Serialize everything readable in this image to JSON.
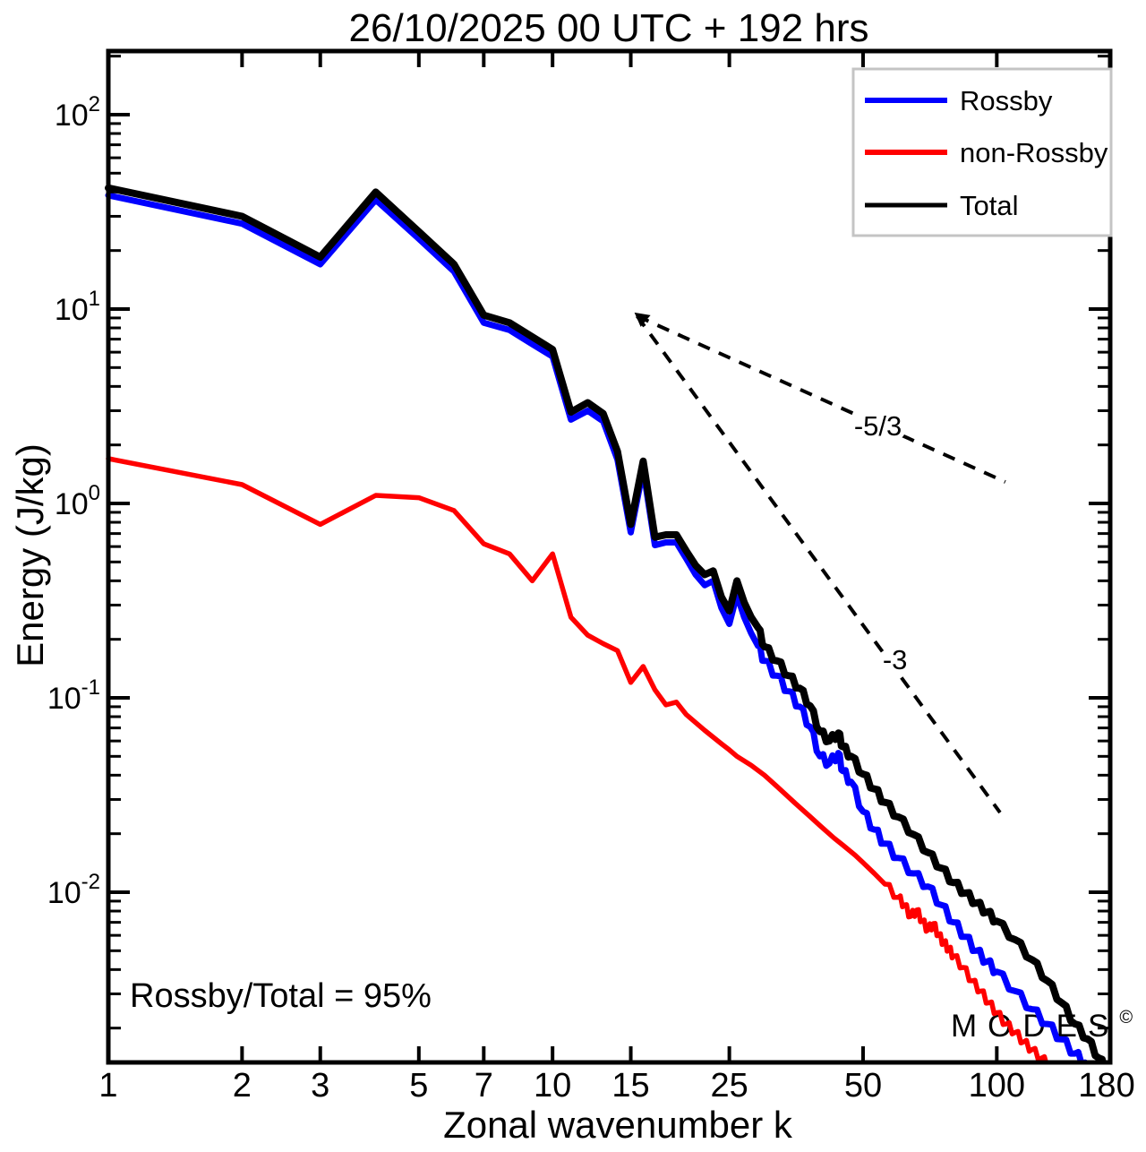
{
  "chart_data": {
    "type": "line",
    "title": "26/10/2025  00 UTC  + 192 hrs",
    "xlabel": "Zonal wavenumber k",
    "ylabel": "Energy (J/kg)",
    "x_scale": "log",
    "y_scale": "log",
    "xlim": [
      1,
      180
    ],
    "ylim": [
      0.00133,
      212
    ],
    "x_ticks": [
      1,
      2,
      3,
      5,
      7,
      10,
      15,
      25,
      50,
      100,
      180
    ],
    "y_tick_exponents": [
      2,
      1,
      0,
      -1,
      -2
    ],
    "grid": false,
    "legend_position": "top-right",
    "series": [
      {
        "name": "Rossby",
        "color": "#0000ff",
        "points": [
          [
            1,
            38.5
          ],
          [
            2,
            27.5
          ],
          [
            3,
            17
          ],
          [
            4,
            36.5
          ],
          [
            5,
            23
          ],
          [
            6,
            15.6
          ],
          [
            7,
            8.5
          ],
          [
            8,
            7.8
          ],
          [
            9,
            6.6
          ],
          [
            10,
            5.7
          ],
          [
            11,
            2.7
          ],
          [
            12,
            3
          ],
          [
            13,
            2.65
          ],
          [
            14,
            1.68
          ],
          [
            15,
            0.71
          ],
          [
            16,
            1.5
          ],
          [
            17,
            0.61
          ],
          [
            18,
            0.63
          ],
          [
            19,
            0.63
          ],
          [
            20,
            0.52
          ],
          [
            21,
            0.43
          ],
          [
            22,
            0.38
          ],
          [
            23,
            0.4
          ],
          [
            24,
            0.29
          ],
          [
            25,
            0.24
          ],
          [
            26,
            0.34
          ],
          [
            27,
            0.26
          ],
          [
            28,
            0.215
          ],
          [
            29,
            0.185
          ],
          [
            30,
            0.155
          ],
          [
            32,
            0.13
          ],
          [
            34,
            0.108
          ],
          [
            36,
            0.09
          ],
          [
            38,
            0.071
          ],
          [
            40,
            0.05
          ],
          [
            42,
            0.046
          ],
          [
            44,
            0.052
          ],
          [
            45,
            0.042
          ],
          [
            47,
            0.037
          ],
          [
            50,
            0.026
          ],
          [
            53,
            0.021
          ],
          [
            56,
            0.0178
          ],
          [
            60,
            0.015
          ],
          [
            65,
            0.0125
          ],
          [
            70,
            0.0107
          ],
          [
            75,
            0.0086
          ],
          [
            80,
            0.007
          ],
          [
            85,
            0.0059
          ],
          [
            90,
            0.005
          ],
          [
            95,
            0.0044
          ],
          [
            100,
            0.0039
          ],
          [
            110,
            0.0031
          ],
          [
            120,
            0.0025
          ],
          [
            130,
            0.0021
          ],
          [
            140,
            0.00175
          ],
          [
            150,
            0.00148
          ],
          [
            158,
            0.00133
          ]
        ]
      },
      {
        "name": "non-Rossby",
        "color": "#ff0000",
        "points": [
          [
            1,
            1.7
          ],
          [
            2,
            1.25
          ],
          [
            3,
            0.78
          ],
          [
            4,
            1.1
          ],
          [
            5,
            1.07
          ],
          [
            6,
            0.92
          ],
          [
            7,
            0.62
          ],
          [
            8,
            0.55
          ],
          [
            9,
            0.4
          ],
          [
            10,
            0.55
          ],
          [
            11,
            0.26
          ],
          [
            12,
            0.21
          ],
          [
            13,
            0.19
          ],
          [
            14,
            0.175
          ],
          [
            15,
            0.12
          ],
          [
            16,
            0.145
          ],
          [
            17,
            0.11
          ],
          [
            18,
            0.092
          ],
          [
            19,
            0.095
          ],
          [
            20,
            0.082
          ],
          [
            22,
            0.068
          ],
          [
            24,
            0.058
          ],
          [
            25,
            0.054
          ],
          [
            26,
            0.05
          ],
          [
            28,
            0.045
          ],
          [
            30,
            0.04
          ],
          [
            32,
            0.035
          ],
          [
            35,
            0.029
          ],
          [
            38,
            0.0245
          ],
          [
            40,
            0.022
          ],
          [
            43,
            0.019
          ],
          [
            45,
            0.0175
          ],
          [
            48,
            0.0155
          ],
          [
            50,
            0.0142
          ],
          [
            53,
            0.0125
          ],
          [
            56,
            0.011
          ],
          [
            60,
            0.0094
          ],
          [
            62,
            0.0086
          ],
          [
            64,
            0.0075
          ],
          [
            66,
            0.0081
          ],
          [
            68,
            0.0071
          ],
          [
            70,
            0.0064
          ],
          [
            72,
            0.0069
          ],
          [
            74,
            0.006
          ],
          [
            76,
            0.0055
          ],
          [
            78,
            0.0051
          ],
          [
            80,
            0.0047
          ],
          [
            84,
            0.0041
          ],
          [
            88,
            0.0035
          ],
          [
            92,
            0.0031
          ],
          [
            96,
            0.0027
          ],
          [
            100,
            0.0024
          ],
          [
            105,
            0.0021
          ],
          [
            110,
            0.0019
          ],
          [
            115,
            0.0017
          ],
          [
            120,
            0.00155
          ],
          [
            126,
            0.0014
          ],
          [
            132,
            0.00128
          ],
          [
            138,
            0.00117
          ],
          [
            142,
            0.0011
          ]
        ]
      },
      {
        "name": "Total",
        "color": "#000000",
        "points": [
          [
            1,
            42
          ],
          [
            2,
            30
          ],
          [
            3,
            18.5
          ],
          [
            4,
            40
          ],
          [
            5,
            25
          ],
          [
            6,
            17
          ],
          [
            7,
            9.3
          ],
          [
            8,
            8.5
          ],
          [
            9,
            7.2
          ],
          [
            10,
            6.2
          ],
          [
            11,
            2.95
          ],
          [
            12,
            3.3
          ],
          [
            13,
            2.9
          ],
          [
            14,
            1.85
          ],
          [
            15,
            0.78
          ],
          [
            16,
            1.65
          ],
          [
            17,
            0.67
          ],
          [
            18,
            0.69
          ],
          [
            19,
            0.69
          ],
          [
            20,
            0.57
          ],
          [
            21,
            0.48
          ],
          [
            22,
            0.43
          ],
          [
            23,
            0.45
          ],
          [
            24,
            0.33
          ],
          [
            25,
            0.28
          ],
          [
            26,
            0.4
          ],
          [
            27,
            0.31
          ],
          [
            28,
            0.26
          ],
          [
            29,
            0.23
          ],
          [
            30,
            0.183
          ],
          [
            32,
            0.155
          ],
          [
            34,
            0.13
          ],
          [
            36,
            0.112
          ],
          [
            38,
            0.091
          ],
          [
            40,
            0.067
          ],
          [
            42,
            0.06
          ],
          [
            44,
            0.066
          ],
          [
            45,
            0.056
          ],
          [
            47,
            0.05
          ],
          [
            50,
            0.0405
          ],
          [
            53,
            0.034
          ],
          [
            56,
            0.029
          ],
          [
            60,
            0.0244
          ],
          [
            65,
            0.0198
          ],
          [
            70,
            0.016
          ],
          [
            75,
            0.0133
          ],
          [
            80,
            0.0112
          ],
          [
            85,
            0.0099
          ],
          [
            90,
            0.0088
          ],
          [
            95,
            0.0079
          ],
          [
            100,
            0.0071
          ],
          [
            110,
            0.0057
          ],
          [
            120,
            0.0045
          ],
          [
            130,
            0.0035
          ],
          [
            140,
            0.0027
          ],
          [
            150,
            0.0021
          ],
          [
            160,
            0.00176
          ],
          [
            170,
            0.0014
          ],
          [
            178,
            0.00118
          ]
        ]
      }
    ],
    "slope_lines": [
      {
        "label": "-5/3",
        "from": [
          15.5,
          9.2
        ],
        "to": [
          104.5,
          1.29
        ],
        "label_at": [
          54,
          2.49
        ]
      },
      {
        "label": "-3",
        "from": [
          15.5,
          9.2
        ],
        "to": [
          101.7,
          0.0257
        ],
        "label_at": [
          59,
          0.156
        ]
      }
    ],
    "arrow_at": [
      15.5,
      9.2
    ],
    "ratio_label": "Rossby/Total = 95%",
    "watermark": {
      "text": "MODES",
      "mark": "©",
      "color": "#4d4d4d"
    }
  }
}
